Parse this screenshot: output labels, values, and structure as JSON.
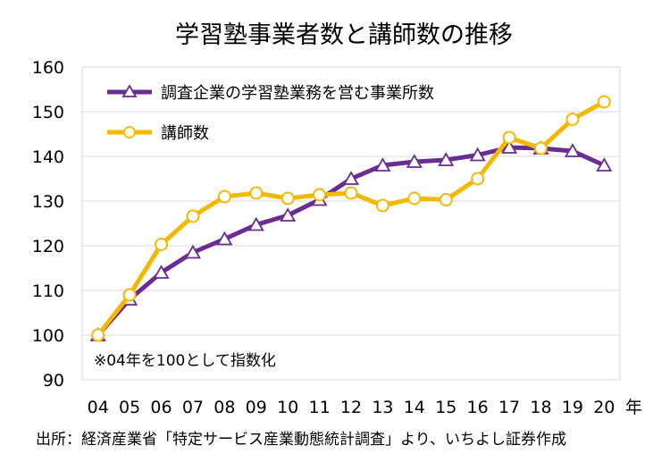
{
  "chart_data": {
    "type": "line",
    "title": "学習塾事業者数と講師数の推移",
    "categories": [
      "04",
      "05",
      "06",
      "07",
      "08",
      "09",
      "10",
      "11",
      "12",
      "13",
      "14",
      "15",
      "16",
      "17",
      "18",
      "19",
      "20"
    ],
    "x_unit": "年",
    "ylim": [
      90,
      160
    ],
    "yticks": [
      90,
      100,
      110,
      120,
      130,
      140,
      150,
      160
    ],
    "series": [
      {
        "name": "調査企業の学習塾業務を営む事業所数",
        "color": "#6a2c91",
        "marker": "triangle",
        "values": [
          100,
          108,
          114,
          118.5,
          121.5,
          124.7,
          126.8,
          130.3,
          135,
          138,
          138.8,
          139.2,
          140.3,
          142,
          141.8,
          141.2,
          138
        ]
      },
      {
        "name": "講師数",
        "color": "#f5b800",
        "marker": "circle",
        "values": [
          100,
          109,
          120.3,
          126.6,
          131,
          131.8,
          130.6,
          131.4,
          131.8,
          129,
          130.6,
          130.3,
          135,
          144.2,
          141.8,
          148.3,
          152.2
        ]
      }
    ],
    "grid": true,
    "legend_position": "top-left",
    "annotation": "※04年を100として指数化"
  },
  "source": "出所：経済産業省「特定サービス産業動態統計調査」より、いちよし証券作成"
}
